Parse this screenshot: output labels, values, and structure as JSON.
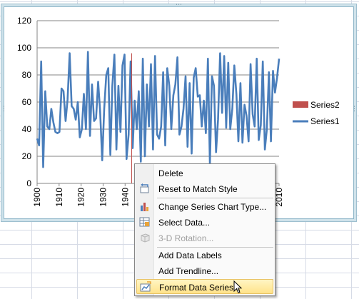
{
  "chart_data": {
    "type": "line",
    "title": "",
    "xlabel": "",
    "ylabel": "",
    "xlim": [
      1900,
      2010
    ],
    "ylim": [
      0,
      120
    ],
    "yticks": [
      "0",
      "20",
      "40",
      "60",
      "80",
      "100",
      "120"
    ],
    "xticks": [
      "1900",
      "1910",
      "1920",
      "1930",
      "1940",
      "1950",
      "1960",
      "1970",
      "1980",
      "1990",
      "2000",
      "2010"
    ],
    "grid": "horizontal",
    "legend_position": "right",
    "series": [
      {
        "name": "Series1",
        "color": "#4a7ebb",
        "x_start": 1900,
        "values": [
          33,
          28,
          90,
          12,
          68,
          42,
          40,
          55,
          45,
          38,
          37,
          38,
          70,
          68,
          46,
          62,
          96,
          57,
          55,
          47,
          60,
          34,
          40,
          66,
          40,
          97,
          35,
          73,
          46,
          48,
          75,
          53,
          17,
          55,
          80,
          85,
          21,
          72,
          95,
          25,
          72,
          38,
          87,
          95,
          18,
          36,
          90,
          26,
          61,
          40,
          68,
          16,
          92,
          20,
          73,
          42,
          88,
          25,
          94,
          36,
          33,
          42,
          82,
          28,
          85,
          72,
          40,
          65,
          73,
          93,
          36,
          42,
          55,
          79,
          27,
          74,
          22,
          78,
          85,
          64,
          65,
          42,
          61,
          37,
          92,
          14,
          79,
          72,
          23,
          47,
          96,
          52,
          94,
          41,
          89,
          40,
          55,
          87,
          66,
          31,
          74,
          30,
          58,
          50,
          31,
          88,
          51,
          42,
          92,
          32,
          43,
          90,
          25,
          40,
          82,
          31,
          83,
          67,
          78,
          92
        ]
      },
      {
        "name": "Series2",
        "color": "#c0504d",
        "x": [
          1943,
          1943
        ],
        "values": [
          0,
          96
        ]
      }
    ]
  },
  "context_menu": {
    "items": [
      {
        "label": "Delete",
        "icon": "",
        "enabled": true
      },
      {
        "label": "Reset to Match Style",
        "icon": "reset-style-icon",
        "enabled": true
      },
      {
        "label": "Change Series Chart Type...",
        "icon": "chart-type-icon",
        "enabled": true
      },
      {
        "label": "Select Data...",
        "icon": "select-data-icon",
        "enabled": true
      },
      {
        "label": "3-D Rotation...",
        "icon": "rotation-3d-icon",
        "enabled": false
      },
      {
        "label": "Add Data Labels",
        "icon": "",
        "enabled": true
      },
      {
        "label": "Add Trendline...",
        "icon": "",
        "enabled": true
      },
      {
        "label": "Format Data Series...",
        "icon": "format-series-icon",
        "enabled": true,
        "highlighted": true
      }
    ]
  },
  "colors": {
    "chart_border": "#8fb6c9",
    "menu_highlight": "#ffe38a"
  }
}
